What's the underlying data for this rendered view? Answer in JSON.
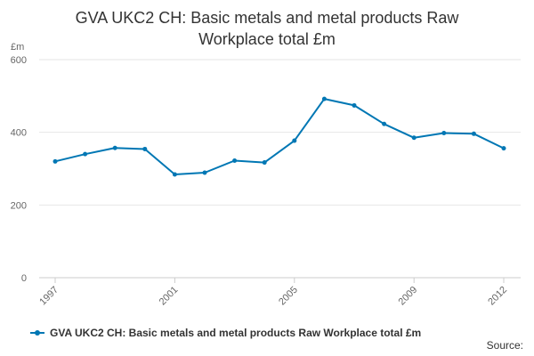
{
  "chart_data": {
    "type": "line",
    "title": "GVA UKC2 CH: Basic metals and metal products Raw Workplace total £m",
    "y_unit": "£m",
    "ylim": [
      0,
      600
    ],
    "y_ticks": [
      0,
      200,
      400,
      600
    ],
    "x_ticks": [
      1997,
      2001,
      2005,
      2009,
      2012
    ],
    "grid": "horizontal",
    "legend_position": "bottom-left",
    "series": [
      {
        "name": "GVA UKC2 CH: Basic metals and metal products Raw Workplace total £m",
        "color": "#0077b4",
        "x": [
          1997,
          1998,
          1999,
          2000,
          2001,
          2002,
          2003,
          2004,
          2005,
          2006,
          2007,
          2008,
          2009,
          2010,
          2011,
          2012
        ],
        "values": [
          320,
          340,
          357,
          354,
          284,
          289,
          322,
          317,
          377,
          492,
          474,
          423,
          385,
          398,
          396,
          356
        ]
      }
    ]
  },
  "source_label": "Source:"
}
